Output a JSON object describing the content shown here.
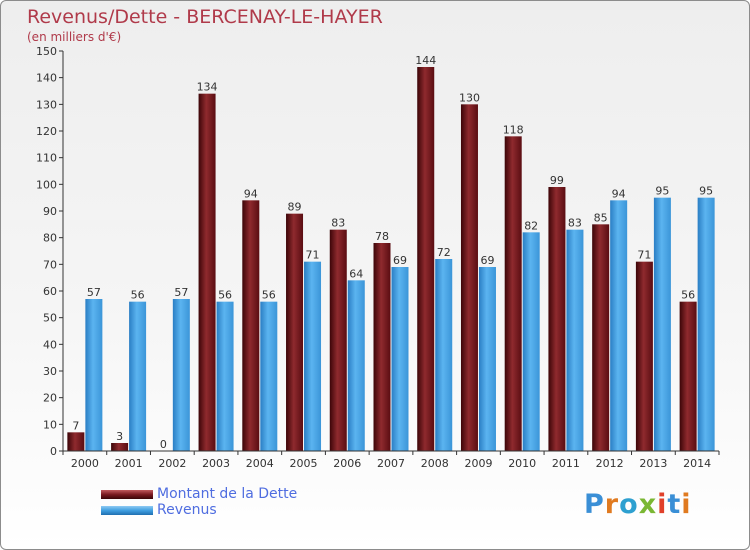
{
  "title": "Revenus/Dette - BERCENAY-LE-HAYER",
  "subtitle": "(en milliers d'€)",
  "chart_data": {
    "type": "bar",
    "categories": [
      "2000",
      "2001",
      "2002",
      "2003",
      "2004",
      "2005",
      "2006",
      "2007",
      "2008",
      "2009",
      "2010",
      "2011",
      "2012",
      "2013",
      "2014"
    ],
    "series": [
      {
        "name": "Montant de la Dette",
        "color": "#7a1a20",
        "values": [
          7,
          3,
          0,
          134,
          94,
          89,
          83,
          78,
          144,
          130,
          118,
          99,
          85,
          71,
          56
        ]
      },
      {
        "name": "Revenus",
        "color": "#3f9ee0",
        "values": [
          57,
          56,
          57,
          56,
          56,
          71,
          64,
          69,
          72,
          69,
          82,
          83,
          94,
          95,
          95
        ]
      }
    ],
    "ylim": [
      0,
      150
    ],
    "yticks": [
      0,
      10,
      20,
      30,
      40,
      50,
      60,
      70,
      80,
      90,
      100,
      110,
      120,
      130,
      140,
      150
    ],
    "grid": false,
    "legend": "bottom-left"
  },
  "legend": {
    "items": [
      {
        "label": "Montant de la Dette",
        "color": "#7a1a20"
      },
      {
        "label": "Revenus",
        "color": "#3f9ee0"
      }
    ]
  },
  "logo": {
    "text": "Proxiti",
    "colors": [
      "#3a8fd6",
      "#e07a20",
      "#2ea0d0",
      "#7ab733",
      "#e0402a",
      "#3a8fd6",
      "#e07a20"
    ]
  }
}
